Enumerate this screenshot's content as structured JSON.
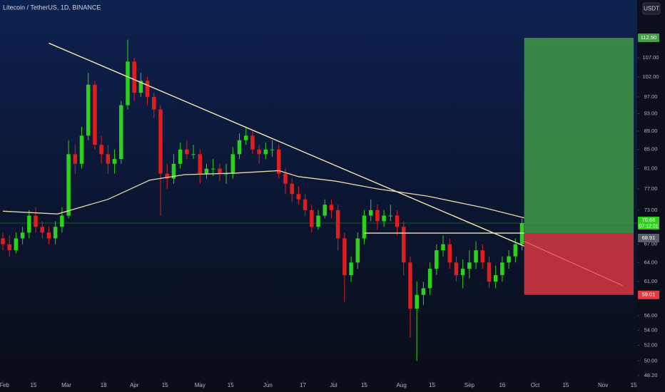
{
  "chart_data": {
    "type": "candlestick",
    "title": "Litecoin / TetherUS, 1D, BINANCE",
    "currency": "USDT",
    "log_scale": true,
    "up_color": "#2bd11b",
    "down_color": "#e01e1e",
    "xlim": [
      -1.3,
      289.6
    ],
    "ylim": [
      47.5,
      123.7
    ],
    "xticks": [
      {
        "value": 0,
        "label": "Feb"
      },
      {
        "value": 14,
        "label": "15"
      },
      {
        "value": 29,
        "label": "Mar"
      },
      {
        "value": 46,
        "label": "18"
      },
      {
        "value": 60,
        "label": "Apr"
      },
      {
        "value": 74,
        "label": "15"
      },
      {
        "value": 90,
        "label": "May"
      },
      {
        "value": 104,
        "label": "15"
      },
      {
        "value": 121,
        "label": "Jun"
      },
      {
        "value": 137,
        "label": "17"
      },
      {
        "value": 151,
        "label": "Jul"
      },
      {
        "value": 165,
        "label": "15"
      },
      {
        "value": 182,
        "label": "Aug"
      },
      {
        "value": 196,
        "label": "15"
      },
      {
        "value": 213,
        "label": "Sep"
      },
      {
        "value": 228,
        "label": "16"
      },
      {
        "value": 243,
        "label": "Oct"
      },
      {
        "value": 257,
        "label": "15"
      },
      {
        "value": 274,
        "label": "Nov"
      },
      {
        "value": 288,
        "label": "15"
      }
    ],
    "yticks": [
      {
        "value": 107,
        "label": "107.00"
      },
      {
        "value": 102,
        "label": "102.00"
      },
      {
        "value": 97,
        "label": "97.00"
      },
      {
        "value": 93,
        "label": "93.00"
      },
      {
        "value": 89,
        "label": "89.00"
      },
      {
        "value": 85,
        "label": "85.00"
      },
      {
        "value": 81,
        "label": "81.00"
      },
      {
        "value": 77,
        "label": "77.00"
      },
      {
        "value": 73,
        "label": "73.00"
      },
      {
        "value": 67,
        "label": "67.00"
      },
      {
        "value": 64,
        "label": "64.00"
      },
      {
        "value": 61,
        "label": "61.00"
      },
      {
        "value": 56,
        "label": "56.00"
      },
      {
        "value": 54,
        "label": "54.00"
      },
      {
        "value": 52,
        "label": "52.00"
      },
      {
        "value": 50,
        "label": "50.00"
      },
      {
        "value": 48.2,
        "label": "48.20"
      }
    ],
    "x": [
      0,
      3,
      6,
      9,
      12,
      15,
      18,
      21,
      24,
      27,
      30,
      33,
      36,
      39,
      42,
      45,
      48,
      51,
      54,
      57,
      60,
      63,
      66,
      69,
      72,
      75,
      78,
      81,
      84,
      87,
      90,
      93,
      96,
      99,
      102,
      105,
      108,
      111,
      114,
      117,
      120,
      123,
      126,
      129,
      132,
      135,
      138,
      141,
      144,
      147,
      150,
      153,
      156,
      159,
      162,
      165,
      168,
      171,
      174,
      177,
      180,
      183,
      186,
      189,
      192,
      195,
      198,
      201,
      204,
      207,
      210,
      213,
      216,
      219,
      222,
      225,
      228,
      231,
      234,
      237
    ],
    "open": [
      68,
      67,
      66,
      68,
      69,
      72,
      70,
      69,
      68,
      70,
      72,
      84,
      82,
      88,
      100,
      86,
      84,
      82,
      83,
      95,
      106,
      98,
      101,
      97,
      94,
      80,
      79,
      82,
      85,
      84,
      84,
      80,
      81,
      81,
      80,
      80,
      84,
      87,
      88,
      85,
      84,
      85,
      85,
      80,
      78,
      76,
      75,
      73,
      70,
      72,
      74,
      73,
      68,
      62,
      64,
      68,
      72,
      73,
      71,
      72,
      72,
      70,
      64,
      57,
      59,
      60,
      63,
      66,
      67,
      64,
      62,
      63,
      64,
      66,
      64,
      61,
      62,
      64,
      65,
      67
    ],
    "high": [
      69,
      68.5,
      69,
      70,
      73,
      73.5,
      71,
      70,
      71,
      73.5,
      87,
      86,
      90,
      103,
      101,
      88,
      86,
      85,
      96,
      112,
      107,
      103,
      102,
      98,
      95,
      82,
      84,
      86.5,
      87,
      86,
      85,
      82,
      83,
      82,
      82,
      85.5,
      88.5,
      90,
      89,
      86,
      86.5,
      87,
      86,
      81,
      79,
      77.5,
      76,
      74,
      73,
      75,
      75,
      74,
      69,
      65,
      69,
      73,
      75,
      74,
      73,
      74,
      73,
      71,
      65,
      61,
      61,
      64,
      67,
      68.5,
      68,
      65,
      64.5,
      66,
      67.5,
      67,
      65,
      63.5,
      65,
      66,
      68,
      71.5
    ],
    "low": [
      66,
      65,
      65.5,
      67,
      68,
      69,
      68,
      67,
      67,
      69,
      71.5,
      80,
      81,
      87,
      85,
      82,
      80,
      80,
      82,
      94,
      96,
      97,
      95,
      92,
      72,
      77,
      78,
      81,
      83,
      83,
      78,
      79,
      79.5,
      78.5,
      78,
      79,
      83,
      86,
      84,
      82,
      83,
      83.5,
      79,
      76,
      74.5,
      74,
      72,
      69,
      69.5,
      71.5,
      71.5,
      66,
      58,
      61,
      63,
      67,
      71,
      69.5,
      70,
      71,
      68.5,
      62,
      53,
      50,
      57.5,
      59,
      62,
      65,
      63,
      61,
      60,
      61.5,
      63,
      63,
      60,
      60,
      61,
      63,
      64,
      66
    ],
    "close": [
      67,
      66,
      68,
      69,
      72,
      70,
      69,
      68,
      70,
      72,
      84,
      82,
      88,
      100,
      86,
      84,
      82,
      83,
      95,
      106,
      98,
      101,
      97,
      94,
      80,
      79,
      82,
      85,
      84,
      84,
      80,
      81,
      81,
      80,
      80,
      84,
      87,
      88,
      85,
      84,
      85,
      85,
      80,
      78,
      76,
      75,
      73,
      70,
      72,
      74,
      73,
      68,
      62,
      64,
      68,
      72,
      73,
      71,
      72,
      72,
      70,
      64,
      57,
      59,
      60,
      63,
      66,
      67,
      64,
      62,
      63,
      64,
      66,
      64,
      61,
      62,
      64,
      65,
      67,
      70.66
    ],
    "moving_average": {
      "color": "#e8d9a8",
      "x": [
        0,
        25,
        48,
        67,
        83,
        106,
        126,
        135,
        152,
        171,
        194,
        220,
        238
      ],
      "values": [
        72.8,
        72.3,
        75,
        78.7,
        79.8,
        80.1,
        80.6,
        79.4,
        78.5,
        77,
        75.6,
        73.4,
        71.6
      ]
    },
    "trendline": {
      "color": "#f3e6b0",
      "x": [
        21,
        238
      ],
      "values": [
        111,
        66.7
      ]
    },
    "projection": {
      "color": "#f07080",
      "x": [
        238,
        283
      ],
      "values": [
        67.5,
        60.4
      ]
    },
    "position": {
      "x": [
        238,
        288
      ],
      "target": {
        "value": 112.5,
        "label": "112.50",
        "color": "#43a047"
      },
      "entry": {
        "value": 68.91,
        "label": "68.91",
        "color": "#5a5f6b"
      },
      "stop": {
        "value": 59.01,
        "label": "59.01",
        "color": "#e53945"
      }
    },
    "last_price": {
      "value": 70.66,
      "label": "70.66",
      "countdown": "07:12:01",
      "color": "#2bd11b"
    }
  }
}
